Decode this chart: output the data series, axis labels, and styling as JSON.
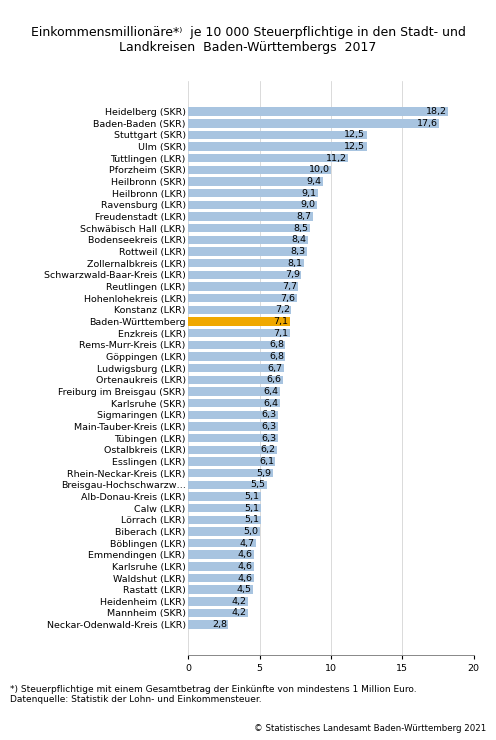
{
  "footnote1": "*) Steuerpflichtige mit einem Gesamtbetrag der Einkünfte von mindestens 1 Million Euro.",
  "footnote2": "Datenquelle: Statistik der Lohn- und Einkommensteuer.",
  "copyright": "© Statistisches Landesamt Baden-Württemberg 2021",
  "categories": [
    "Heidelberg (SKR)",
    "Baden-Baden (SKR)",
    "Stuttgart (SKR)",
    "Ulm (SKR)",
    "Tuttlingen (LKR)",
    "Pforzheim (SKR)",
    "Heilbronn (SKR)",
    "Heilbronn (LKR)",
    "Ravensburg (LKR)",
    "Freudenstadt (LKR)",
    "Schwäbisch Hall (LKR)",
    "Bodenseekreis (LKR)",
    "Rottweil (LKR)",
    "Zollernalbkreis (LKR)",
    "Schwarzwald-Baar-Kreis (LKR)",
    "Reutlingen (LKR)",
    "Hohenlohekreis (LKR)",
    "Konstanz (LKR)",
    "Baden-Württemberg",
    "Enzkreis (LKR)",
    "Rems-Murr-Kreis (LKR)",
    "Göppingen (LKR)",
    "Ludwigsburg (LKR)",
    "Ortenaukreis (LKR)",
    "Freiburg im Breisgau (SKR)",
    "Karlsruhe (SKR)",
    "Sigmaringen (LKR)",
    "Main-Tauber-Kreis (LKR)",
    "Tübingen (LKR)",
    "Ostalbkreis (LKR)",
    "Esslingen (LKR)",
    "Rhein-Neckar-Kreis (LKR)",
    "Breisgau-Hochschwarzw…",
    "Alb-Donau-Kreis (LKR)",
    "Calw (LKR)",
    "Lörrach (LKR)",
    "Biberach (LKR)",
    "Böblingen (LKR)",
    "Emmendingen (LKR)",
    "Karlsruhe (LKR)",
    "Waldshut (LKR)",
    "Rastatt (LKR)",
    "Heidenheim (LKR)",
    "Mannheim (SKR)",
    "Neckar-Odenwald-Kreis (LKR)"
  ],
  "values": [
    18.2,
    17.6,
    12.5,
    12.5,
    11.2,
    10.0,
    9.4,
    9.1,
    9.0,
    8.7,
    8.5,
    8.4,
    8.3,
    8.1,
    7.9,
    7.7,
    7.6,
    7.2,
    7.1,
    7.1,
    6.8,
    6.8,
    6.7,
    6.6,
    6.4,
    6.4,
    6.3,
    6.3,
    6.3,
    6.2,
    6.1,
    5.9,
    5.5,
    5.1,
    5.1,
    5.1,
    5.0,
    4.7,
    4.6,
    4.6,
    4.6,
    4.5,
    4.2,
    4.2,
    2.8
  ],
  "bar_color_default": "#a8c4e0",
  "bar_color_highlight": "#f0a800",
  "highlight_index": 18,
  "xlim": [
    0,
    20
  ],
  "xticks": [
    0,
    5,
    10,
    15,
    20
  ],
  "background_color": "#ffffff",
  "grid_color": "#cccccc",
  "label_fontsize": 6.8,
  "value_fontsize": 6.8,
  "title_fontsize": 9.0
}
